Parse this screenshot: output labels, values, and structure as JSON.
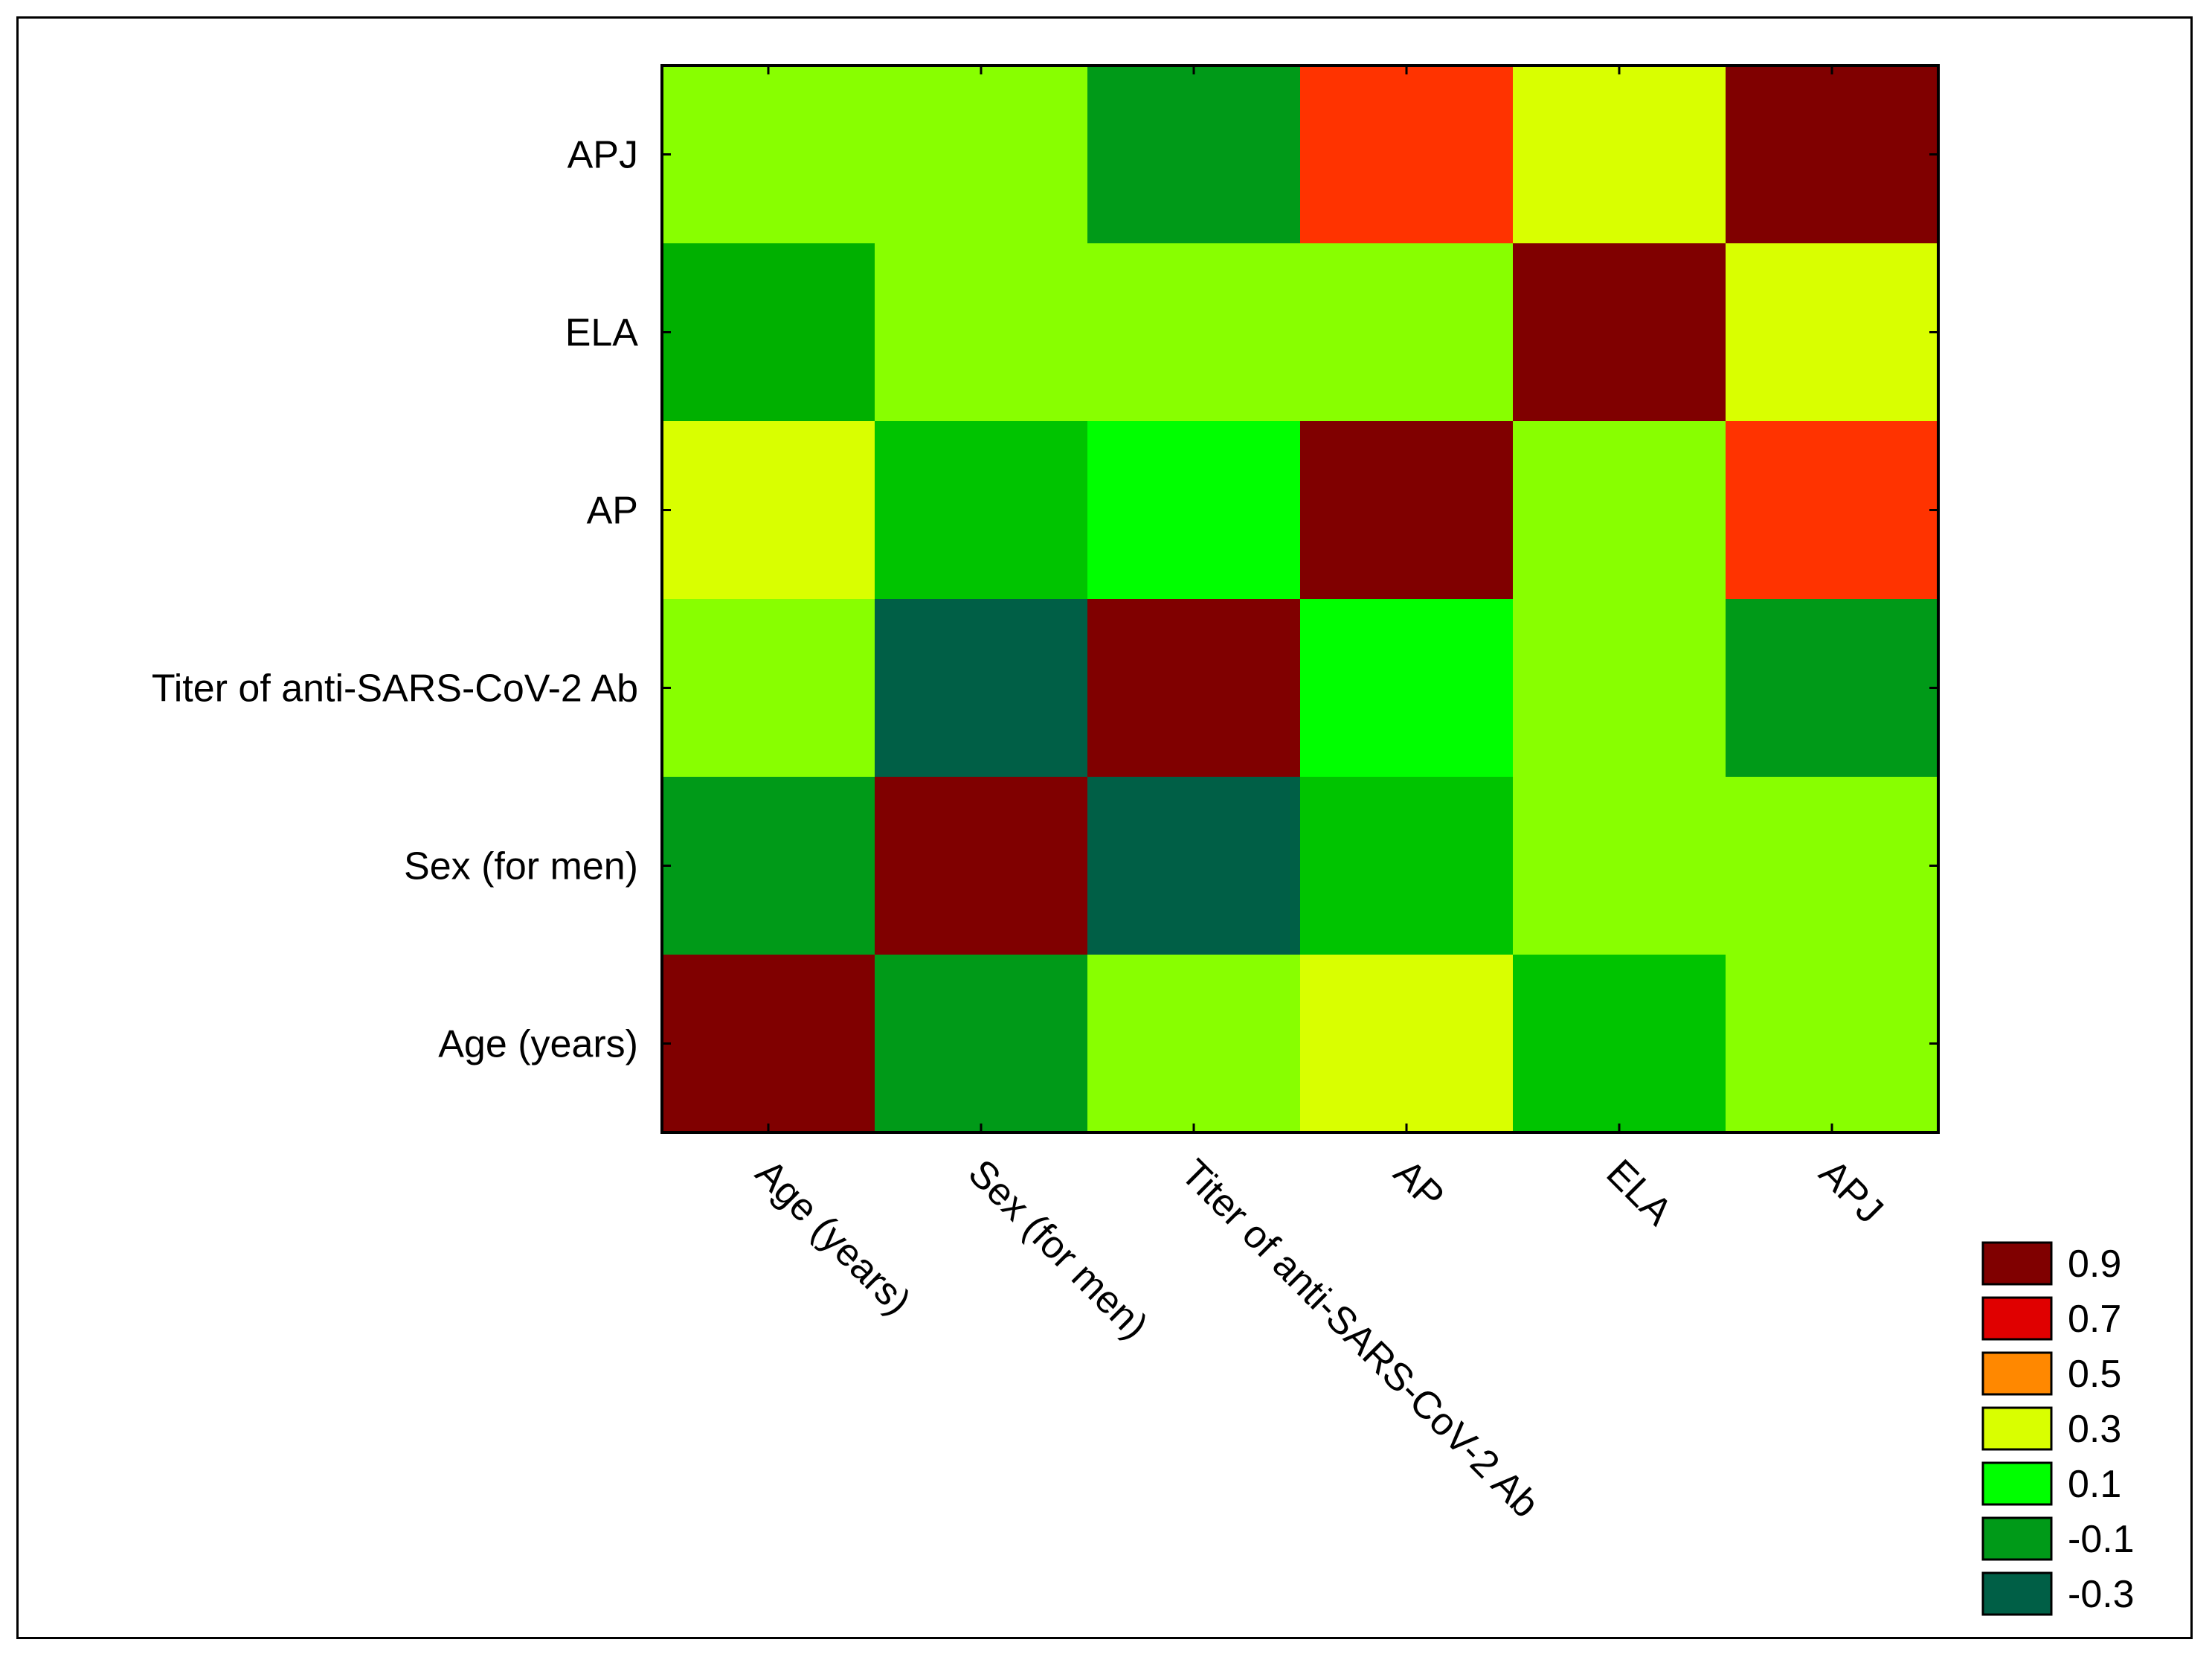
{
  "chart_data": {
    "type": "heatmap",
    "title": "",
    "x_labels": [
      "Age (years)",
      "Sex (for men)",
      "Titer of anti-SARS-CoV-2 Ab",
      "AP",
      "ELA",
      "APJ"
    ],
    "y_labels_top_to_bottom": [
      "APJ",
      "ELA",
      "AP",
      "Titer of anti-SARS-CoV-2 Ab",
      "Sex (for men)",
      "Age (years)"
    ],
    "values": [
      [
        0.2,
        0.2,
        -0.1,
        0.7,
        0.3,
        0.9
      ],
      [
        -0.05,
        0.2,
        0.2,
        0.2,
        0.9,
        0.3
      ],
      [
        0.3,
        0.0,
        0.1,
        0.9,
        0.2,
        0.7
      ],
      [
        0.2,
        -0.3,
        0.9,
        0.1,
        0.2,
        -0.1
      ],
      [
        -0.1,
        0.9,
        -0.3,
        0.0,
        0.2,
        0.2
      ],
      [
        0.9,
        -0.1,
        0.2,
        0.3,
        0.0,
        0.2
      ]
    ],
    "colors_top_to_bottom": [
      [
        "#88ff00",
        "#88ff00",
        "#009a18",
        "#ff3300",
        "#d9ff00",
        "#800000"
      ],
      [
        "#00b000",
        "#88ff00",
        "#88ff00",
        "#88ff00",
        "#800000",
        "#d9ff00"
      ],
      [
        "#d9ff00",
        "#00c400",
        "#00ff00",
        "#800000",
        "#88ff00",
        "#ff3300"
      ],
      [
        "#88ff00",
        "#005f46",
        "#800000",
        "#00ff00",
        "#88ff00",
        "#009a18"
      ],
      [
        "#009a18",
        "#800000",
        "#005f46",
        "#00c400",
        "#88ff00",
        "#88ff00"
      ],
      [
        "#800000",
        "#009a18",
        "#88ff00",
        "#d9ff00",
        "#00c400",
        "#88ff00"
      ]
    ],
    "legend": [
      {
        "label": "0.9",
        "color": "#800000"
      },
      {
        "label": "0.7",
        "color": "#e00000"
      },
      {
        "label": "0.5",
        "color": "#ff8800"
      },
      {
        "label": "0.3",
        "color": "#d9ff00"
      },
      {
        "label": "0.1",
        "color": "#00ff00"
      },
      {
        "label": "-0.1",
        "color": "#009a18"
      },
      {
        "label": "-0.3",
        "color": "#005f46"
      }
    ],
    "legend_position": "bottom-right"
  }
}
